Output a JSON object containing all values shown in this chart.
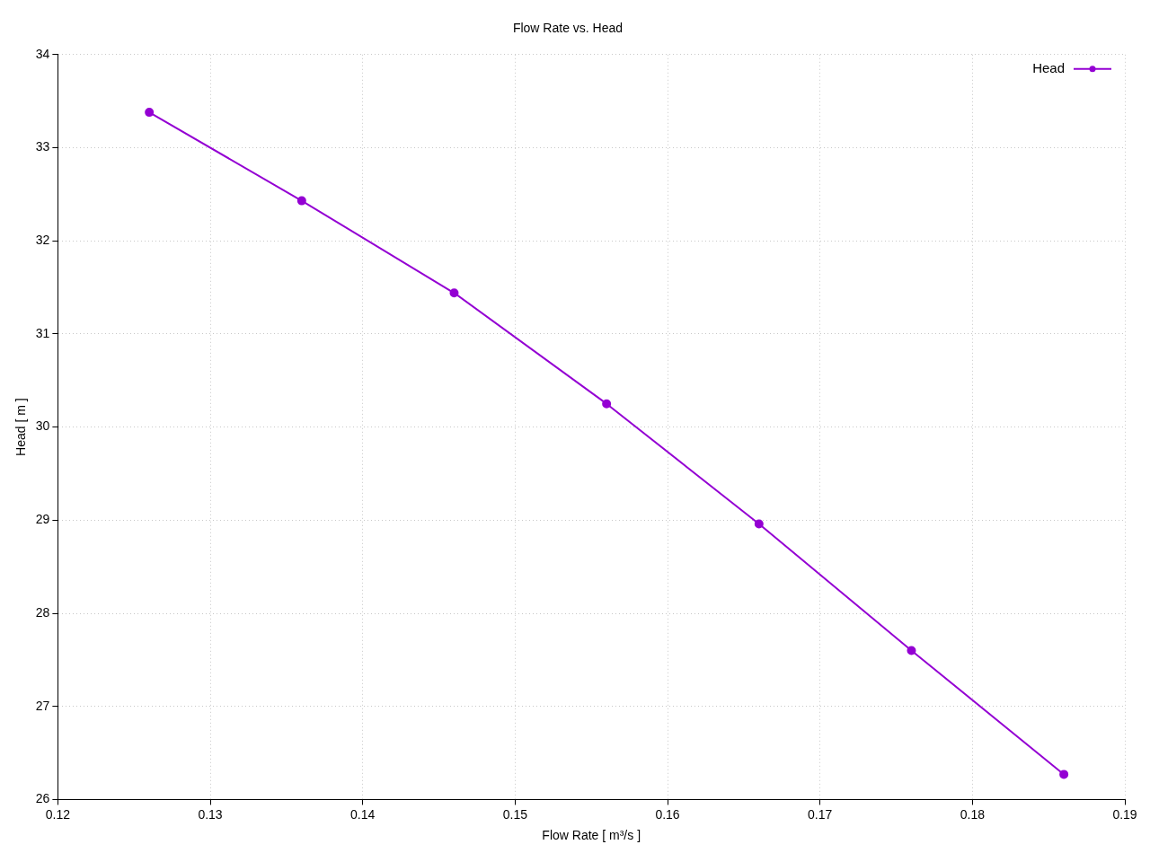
{
  "chart_data": {
    "type": "line",
    "title": "Flow Rate vs. Head",
    "xlabel": "Flow Rate [ m³/s ]",
    "ylabel": "Head [ m ]",
    "x": [
      0.126,
      0.136,
      0.146,
      0.156,
      0.166,
      0.176,
      0.186
    ],
    "series": [
      {
        "name": "Head",
        "color": "#9400d3",
        "values": [
          33.38,
          32.43,
          31.44,
          30.25,
          28.96,
          27.6,
          26.27
        ]
      }
    ],
    "xlim": [
      0.12,
      0.19
    ],
    "xticks": [
      0.12,
      0.13,
      0.14,
      0.15,
      0.16,
      0.17,
      0.18,
      0.19
    ],
    "ylim": [
      26,
      34
    ],
    "yticks": [
      26,
      27,
      28,
      29,
      30,
      31,
      32,
      33,
      34
    ],
    "grid": true,
    "legend": "top right",
    "marker": "circle",
    "line_style": "solid"
  }
}
